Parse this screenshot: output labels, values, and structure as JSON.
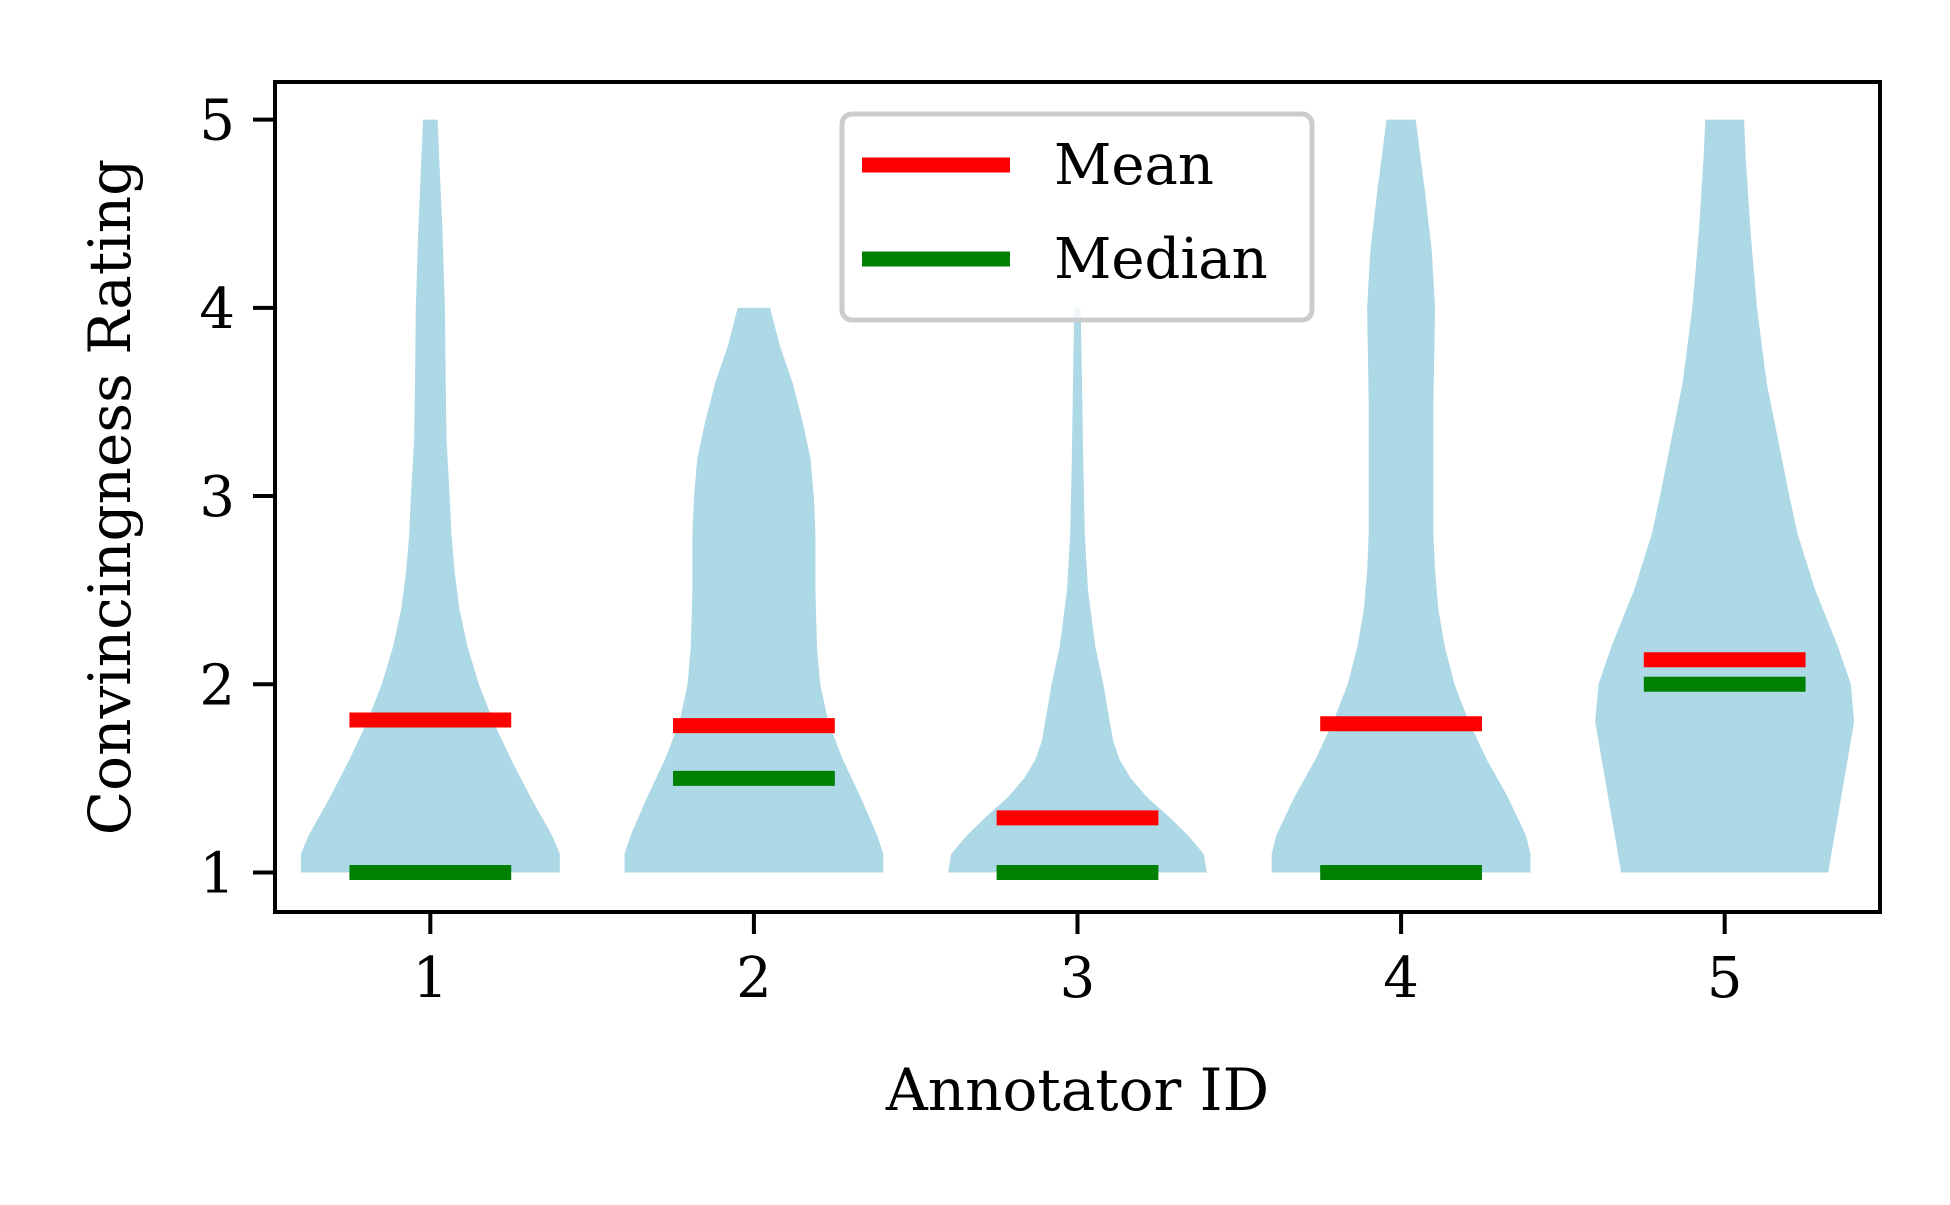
{
  "chart_data": {
    "type": "violin",
    "xlabel": "Annotator ID",
    "ylabel": "Convincingness Rating",
    "categories": [
      "1",
      "2",
      "3",
      "4",
      "5"
    ],
    "ylim": [
      0.79,
      5.2
    ],
    "yticks": [
      "1",
      "2",
      "3",
      "4",
      "5"
    ],
    "grid": false,
    "legend_position": "top-center",
    "legend": [
      {
        "label": "Mean",
        "color": "#ff0000"
      },
      {
        "label": "Median",
        "color": "#008000"
      }
    ],
    "violin_color": "#add8e6",
    "series": [
      {
        "name": "Mean",
        "values": [
          1.81,
          1.78,
          1.29,
          1.79,
          2.13
        ]
      },
      {
        "name": "Median",
        "values": [
          1.0,
          1.5,
          1.0,
          1.0,
          2.0
        ]
      }
    ],
    "violins": [
      {
        "category": "1",
        "range": [
          1,
          5
        ],
        "profile": [
          [
            1.0,
            0.8
          ],
          [
            1.1,
            0.8
          ],
          [
            1.2,
            0.75
          ],
          [
            1.4,
            0.62
          ],
          [
            1.6,
            0.5
          ],
          [
            1.8,
            0.39
          ],
          [
            2.0,
            0.3
          ],
          [
            2.2,
            0.23
          ],
          [
            2.4,
            0.18
          ],
          [
            2.6,
            0.15
          ],
          [
            2.8,
            0.13
          ],
          [
            3.0,
            0.12
          ],
          [
            3.3,
            0.1
          ],
          [
            3.6,
            0.095
          ],
          [
            4.0,
            0.09
          ],
          [
            4.4,
            0.075
          ],
          [
            4.8,
            0.055
          ],
          [
            5.0,
            0.045
          ]
        ]
      },
      {
        "category": "2",
        "range": [
          1,
          4
        ],
        "profile": [
          [
            1.0,
            0.8
          ],
          [
            1.1,
            0.8
          ],
          [
            1.2,
            0.76
          ],
          [
            1.4,
            0.66
          ],
          [
            1.6,
            0.55
          ],
          [
            1.8,
            0.46
          ],
          [
            2.0,
            0.41
          ],
          [
            2.2,
            0.39
          ],
          [
            2.5,
            0.38
          ],
          [
            2.8,
            0.38
          ],
          [
            3.0,
            0.37
          ],
          [
            3.2,
            0.35
          ],
          [
            3.4,
            0.3
          ],
          [
            3.6,
            0.24
          ],
          [
            3.8,
            0.16
          ],
          [
            4.0,
            0.1
          ]
        ]
      },
      {
        "category": "3",
        "range": [
          1,
          4
        ],
        "profile": [
          [
            1.0,
            0.8
          ],
          [
            1.1,
            0.78
          ],
          [
            1.2,
            0.68
          ],
          [
            1.3,
            0.56
          ],
          [
            1.4,
            0.43
          ],
          [
            1.5,
            0.33
          ],
          [
            1.6,
            0.26
          ],
          [
            1.7,
            0.22
          ],
          [
            1.85,
            0.19
          ],
          [
            2.0,
            0.16
          ],
          [
            2.2,
            0.11
          ],
          [
            2.5,
            0.065
          ],
          [
            2.8,
            0.045
          ],
          [
            3.2,
            0.035
          ],
          [
            3.6,
            0.028
          ],
          [
            4.0,
            0.02
          ]
        ]
      },
      {
        "category": "4",
        "range": [
          1,
          5
        ],
        "profile": [
          [
            1.0,
            0.8
          ],
          [
            1.1,
            0.8
          ],
          [
            1.2,
            0.77
          ],
          [
            1.4,
            0.66
          ],
          [
            1.6,
            0.53
          ],
          [
            1.8,
            0.42
          ],
          [
            2.0,
            0.33
          ],
          [
            2.2,
            0.27
          ],
          [
            2.4,
            0.23
          ],
          [
            2.6,
            0.21
          ],
          [
            2.8,
            0.2
          ],
          [
            3.0,
            0.2
          ],
          [
            3.2,
            0.2
          ],
          [
            3.5,
            0.2
          ],
          [
            4.0,
            0.21
          ],
          [
            4.3,
            0.19
          ],
          [
            4.6,
            0.15
          ],
          [
            4.8,
            0.12
          ],
          [
            5.0,
            0.09
          ]
        ]
      },
      {
        "category": "5",
        "range": [
          1,
          5
        ],
        "profile": [
          [
            1.0,
            0.64
          ],
          [
            1.2,
            0.68
          ],
          [
            1.5,
            0.74
          ],
          [
            1.8,
            0.8
          ],
          [
            2.0,
            0.78
          ],
          [
            2.2,
            0.7
          ],
          [
            2.5,
            0.56
          ],
          [
            2.8,
            0.45
          ],
          [
            3.0,
            0.4
          ],
          [
            3.3,
            0.33
          ],
          [
            3.6,
            0.26
          ],
          [
            4.0,
            0.2
          ],
          [
            4.4,
            0.16
          ],
          [
            4.8,
            0.13
          ],
          [
            5.0,
            0.12
          ]
        ]
      }
    ]
  }
}
